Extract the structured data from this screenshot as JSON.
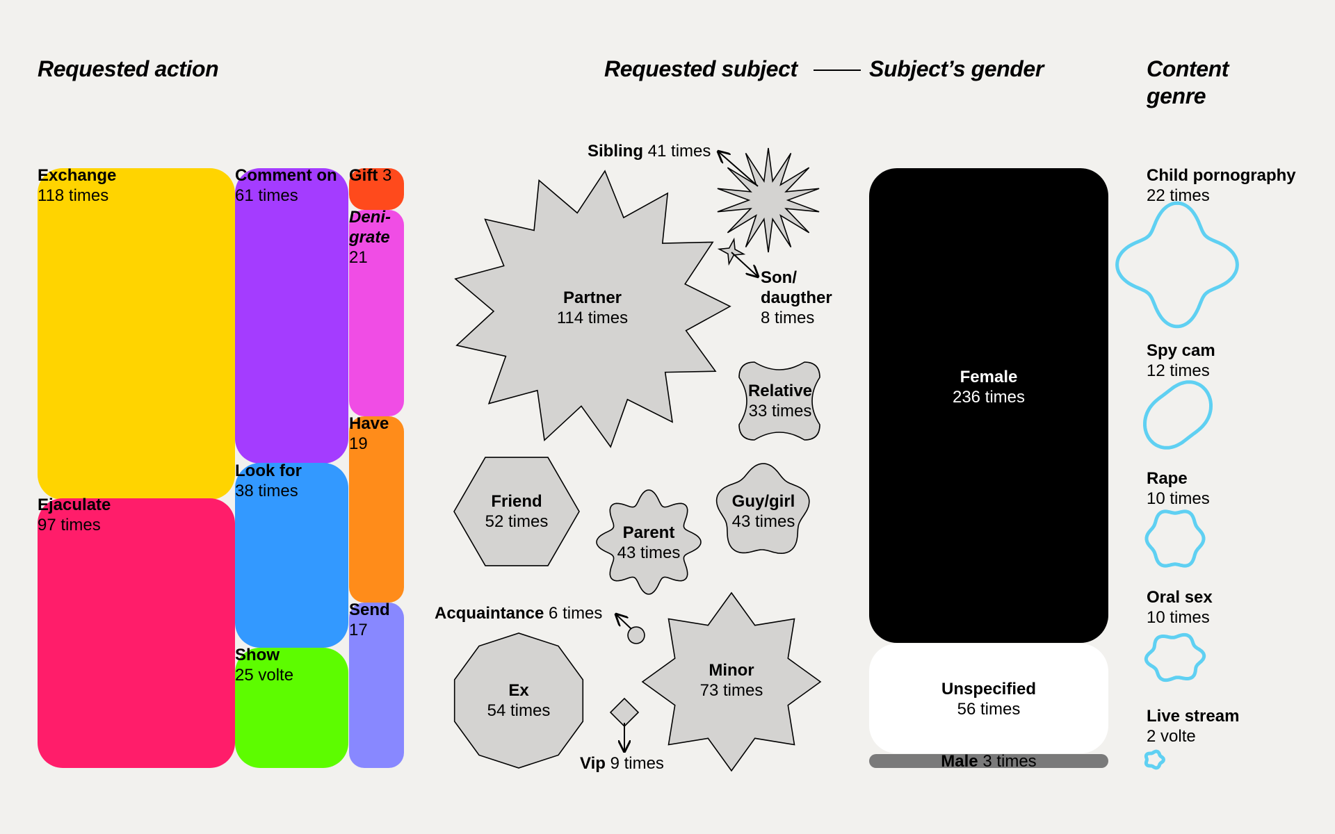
{
  "headings": {
    "action": "Requested action",
    "subject": "Requested subject",
    "gender": "Subject’s gender",
    "genre_line1": "Content",
    "genre_line2": "genre"
  },
  "actions": [
    {
      "name": "Exchange",
      "count": "118 times",
      "color": "#ffd400"
    },
    {
      "name": "Ejaculate",
      "count": "97 times",
      "color": "#ff1d6a"
    },
    {
      "name": "Comment on",
      "count": "61 times",
      "color": "#a43cff"
    },
    {
      "name": "Look for",
      "count": "38 times",
      "color": "#3399ff"
    },
    {
      "name": "Show",
      "count": "25 volte",
      "color": "#5dfc00"
    },
    {
      "name": "Gift",
      "count": "3",
      "color": "#ff4a1c"
    },
    {
      "name": "Deni-",
      "name2": "grate",
      "count": "21",
      "color": "#f04de5"
    },
    {
      "name": "Have",
      "count": "19",
      "color": "#ff8c1a"
    },
    {
      "name": "Send",
      "count": "17",
      "color": "#8888ff"
    }
  ],
  "subjects": {
    "partner": {
      "name": "Partner",
      "count": "114 times"
    },
    "sibling": {
      "name": "Sibling",
      "count": "41 times"
    },
    "son": {
      "name1": "Son/",
      "name2": "daugther",
      "count": "8 times"
    },
    "relative": {
      "name": "Relative",
      "count": "33 times"
    },
    "friend": {
      "name": "Friend",
      "count": "52 times"
    },
    "parent": {
      "name": "Parent",
      "count": "43 times"
    },
    "guy": {
      "name": "Guy/girl",
      "count": "43 times"
    },
    "acquaintance": {
      "name": "Acquaintance",
      "count": "6 times"
    },
    "ex": {
      "name": "Ex",
      "count": "54 times"
    },
    "minor": {
      "name": "Minor",
      "count": "73 times"
    },
    "vip": {
      "name": "Vip",
      "count": "9 times"
    },
    "shape_color": "#d4d3d1"
  },
  "gender": [
    {
      "name": "Female",
      "count": "236 times",
      "color": "#000000"
    },
    {
      "name": "Unspecified",
      "count": "56 times",
      "color": "#ffffff"
    },
    {
      "name": "Male",
      "count": "3 times",
      "color": "#7a7a7a"
    }
  ],
  "genres": [
    {
      "name": "Child pornography",
      "count": "22 times"
    },
    {
      "name": "Spy cam",
      "count": "12 times"
    },
    {
      "name": "Rape",
      "count": "10 times"
    },
    {
      "name": "Oral sex",
      "count": "10 times"
    },
    {
      "name": "Live stream",
      "count": "2 volte"
    }
  ],
  "genre_color": "#5fd0f2",
  "chart_data": {
    "type": "table",
    "panels": [
      {
        "title": "Requested action",
        "categories": [
          "Exchange",
          "Ejaculate",
          "Comment on",
          "Look for",
          "Show",
          "Gift",
          "Denigrate",
          "Have",
          "Send"
        ],
        "values": [
          118,
          97,
          61,
          38,
          25,
          3,
          21,
          19,
          17
        ]
      },
      {
        "title": "Requested subject",
        "categories": [
          "Partner",
          "Minor",
          "Ex",
          "Friend",
          "Parent",
          "Guy/girl",
          "Sibling",
          "Relative",
          "Vip",
          "Son/daugther",
          "Acquaintance"
        ],
        "values": [
          114,
          73,
          54,
          52,
          43,
          43,
          41,
          33,
          9,
          8,
          6
        ]
      },
      {
        "title": "Subject’s gender",
        "categories": [
          "Female",
          "Unspecified",
          "Male"
        ],
        "values": [
          236,
          56,
          3
        ]
      },
      {
        "title": "Content genre",
        "categories": [
          "Child pornography",
          "Spy cam",
          "Rape",
          "Oral sex",
          "Live stream"
        ],
        "values": [
          22,
          12,
          10,
          10,
          2
        ]
      }
    ]
  }
}
